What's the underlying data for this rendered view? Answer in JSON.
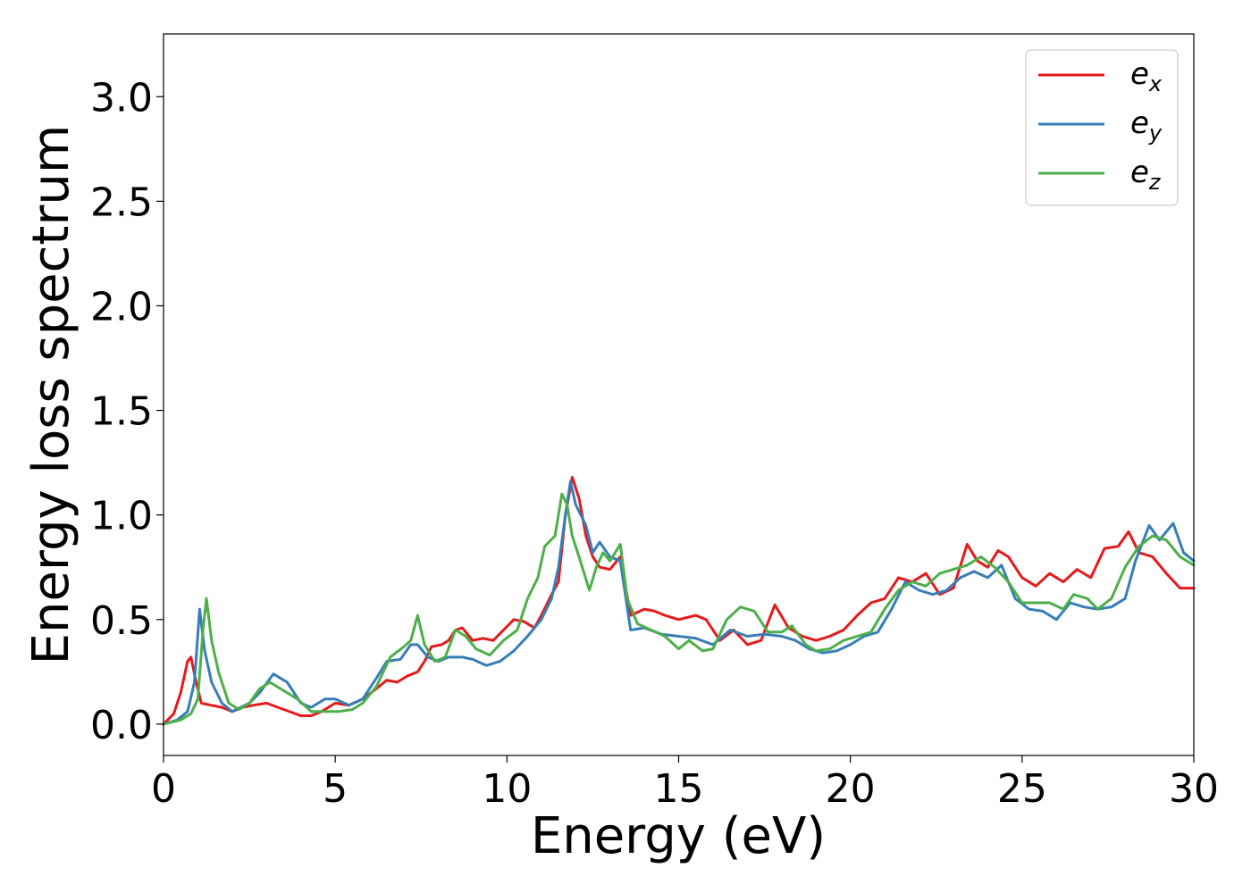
{
  "chart_data": {
    "type": "line",
    "xlabel": "Energy (eV)",
    "ylabel": "Energy loss spectrum",
    "xlim": [
      0,
      30
    ],
    "ylim": [
      -0.15,
      3.3
    ],
    "xticks": [
      0,
      5,
      10,
      15,
      20,
      25,
      30
    ],
    "xtick_labels": [
      "0",
      "5",
      "10",
      "15",
      "20",
      "25",
      "30"
    ],
    "yticks": [
      0.0,
      0.5,
      1.0,
      1.5,
      2.0,
      2.5,
      3.0
    ],
    "ytick_labels": [
      "0.0",
      "0.5",
      "1.0",
      "1.5",
      "2.0",
      "2.5",
      "3.0"
    ],
    "grid": false,
    "legend_position": "top-right",
    "series": [
      {
        "name": "e_x",
        "label_base": "e",
        "label_sub": "x",
        "color": "#e41a1c",
        "points": [
          [
            0,
            0.0
          ],
          [
            0.3,
            0.05
          ],
          [
            0.5,
            0.15
          ],
          [
            0.7,
            0.3
          ],
          [
            0.8,
            0.32
          ],
          [
            0.95,
            0.2
          ],
          [
            1.1,
            0.1
          ],
          [
            1.4,
            0.09
          ],
          [
            1.7,
            0.08
          ],
          [
            2.0,
            0.06
          ],
          [
            2.3,
            0.08
          ],
          [
            2.6,
            0.09
          ],
          [
            3.0,
            0.1
          ],
          [
            3.5,
            0.07
          ],
          [
            4.0,
            0.04
          ],
          [
            4.3,
            0.04
          ],
          [
            4.6,
            0.06
          ],
          [
            5.0,
            0.1
          ],
          [
            5.4,
            0.09
          ],
          [
            5.8,
            0.12
          ],
          [
            6.2,
            0.17
          ],
          [
            6.5,
            0.21
          ],
          [
            6.8,
            0.2
          ],
          [
            7.1,
            0.23
          ],
          [
            7.4,
            0.25
          ],
          [
            7.6,
            0.3
          ],
          [
            7.8,
            0.37
          ],
          [
            8.1,
            0.38
          ],
          [
            8.3,
            0.4
          ],
          [
            8.5,
            0.45
          ],
          [
            8.7,
            0.46
          ],
          [
            9.0,
            0.4
          ],
          [
            9.3,
            0.41
          ],
          [
            9.6,
            0.4
          ],
          [
            9.9,
            0.45
          ],
          [
            10.2,
            0.5
          ],
          [
            10.5,
            0.49
          ],
          [
            10.8,
            0.46
          ],
          [
            11.0,
            0.52
          ],
          [
            11.3,
            0.62
          ],
          [
            11.5,
            0.68
          ],
          [
            11.7,
            1.0
          ],
          [
            11.9,
            1.18
          ],
          [
            12.1,
            1.08
          ],
          [
            12.3,
            0.9
          ],
          [
            12.5,
            0.8
          ],
          [
            12.7,
            0.75
          ],
          [
            13.0,
            0.74
          ],
          [
            13.3,
            0.8
          ],
          [
            13.6,
            0.52
          ],
          [
            14.0,
            0.55
          ],
          [
            14.3,
            0.54
          ],
          [
            14.6,
            0.52
          ],
          [
            15.0,
            0.5
          ],
          [
            15.5,
            0.52
          ],
          [
            15.8,
            0.5
          ],
          [
            16.2,
            0.4
          ],
          [
            16.6,
            0.45
          ],
          [
            17.0,
            0.38
          ],
          [
            17.4,
            0.4
          ],
          [
            17.8,
            0.57
          ],
          [
            18.2,
            0.46
          ],
          [
            18.6,
            0.42
          ],
          [
            19.0,
            0.4
          ],
          [
            19.4,
            0.42
          ],
          [
            19.8,
            0.45
          ],
          [
            20.2,
            0.52
          ],
          [
            20.6,
            0.58
          ],
          [
            21.0,
            0.6
          ],
          [
            21.4,
            0.7
          ],
          [
            21.8,
            0.68
          ],
          [
            22.2,
            0.72
          ],
          [
            22.6,
            0.62
          ],
          [
            23.0,
            0.65
          ],
          [
            23.4,
            0.86
          ],
          [
            23.7,
            0.78
          ],
          [
            24.0,
            0.75
          ],
          [
            24.3,
            0.83
          ],
          [
            24.6,
            0.8
          ],
          [
            25.0,
            0.7
          ],
          [
            25.4,
            0.66
          ],
          [
            25.8,
            0.72
          ],
          [
            26.2,
            0.68
          ],
          [
            26.6,
            0.74
          ],
          [
            27.0,
            0.7
          ],
          [
            27.4,
            0.84
          ],
          [
            27.8,
            0.85
          ],
          [
            28.1,
            0.92
          ],
          [
            28.4,
            0.82
          ],
          [
            28.8,
            0.8
          ],
          [
            29.2,
            0.72
          ],
          [
            29.6,
            0.65
          ],
          [
            30.0,
            0.65
          ]
        ]
      },
      {
        "name": "e_y",
        "label_base": "e",
        "label_sub": "y",
        "color": "#377eb8",
        "points": [
          [
            0,
            0.0
          ],
          [
            0.4,
            0.02
          ],
          [
            0.7,
            0.06
          ],
          [
            0.9,
            0.2
          ],
          [
            1.05,
            0.55
          ],
          [
            1.2,
            0.35
          ],
          [
            1.4,
            0.2
          ],
          [
            1.7,
            0.1
          ],
          [
            2.0,
            0.06
          ],
          [
            2.5,
            0.1
          ],
          [
            2.8,
            0.15
          ],
          [
            3.2,
            0.24
          ],
          [
            3.6,
            0.2
          ],
          [
            4.0,
            0.1
          ],
          [
            4.3,
            0.08
          ],
          [
            4.7,
            0.12
          ],
          [
            5.0,
            0.12
          ],
          [
            5.4,
            0.09
          ],
          [
            5.8,
            0.12
          ],
          [
            6.2,
            0.22
          ],
          [
            6.5,
            0.3
          ],
          [
            6.9,
            0.31
          ],
          [
            7.2,
            0.38
          ],
          [
            7.4,
            0.38
          ],
          [
            7.7,
            0.32
          ],
          [
            8.0,
            0.3
          ],
          [
            8.3,
            0.32
          ],
          [
            8.7,
            0.32
          ],
          [
            9.0,
            0.31
          ],
          [
            9.4,
            0.28
          ],
          [
            9.8,
            0.3
          ],
          [
            10.2,
            0.35
          ],
          [
            10.6,
            0.42
          ],
          [
            11.0,
            0.5
          ],
          [
            11.3,
            0.6
          ],
          [
            11.5,
            0.75
          ],
          [
            11.7,
            1.0
          ],
          [
            11.85,
            1.16
          ],
          [
            12.0,
            1.05
          ],
          [
            12.3,
            0.95
          ],
          [
            12.5,
            0.82
          ],
          [
            12.7,
            0.87
          ],
          [
            13.0,
            0.8
          ],
          [
            13.3,
            0.78
          ],
          [
            13.6,
            0.45
          ],
          [
            14.0,
            0.46
          ],
          [
            14.5,
            0.43
          ],
          [
            15.0,
            0.42
          ],
          [
            15.5,
            0.41
          ],
          [
            16.0,
            0.38
          ],
          [
            16.5,
            0.45
          ],
          [
            17.0,
            0.42
          ],
          [
            17.5,
            0.43
          ],
          [
            18.0,
            0.42
          ],
          [
            18.4,
            0.4
          ],
          [
            18.8,
            0.36
          ],
          [
            19.2,
            0.34
          ],
          [
            19.6,
            0.35
          ],
          [
            20.0,
            0.38
          ],
          [
            20.4,
            0.42
          ],
          [
            20.8,
            0.44
          ],
          [
            21.2,
            0.55
          ],
          [
            21.6,
            0.68
          ],
          [
            22.0,
            0.64
          ],
          [
            22.4,
            0.62
          ],
          [
            22.8,
            0.64
          ],
          [
            23.2,
            0.7
          ],
          [
            23.6,
            0.73
          ],
          [
            24.0,
            0.7
          ],
          [
            24.4,
            0.76
          ],
          [
            24.8,
            0.6
          ],
          [
            25.2,
            0.55
          ],
          [
            25.6,
            0.54
          ],
          [
            26.0,
            0.5
          ],
          [
            26.4,
            0.58
          ],
          [
            26.8,
            0.56
          ],
          [
            27.2,
            0.55
          ],
          [
            27.6,
            0.56
          ],
          [
            28.0,
            0.6
          ],
          [
            28.3,
            0.78
          ],
          [
            28.7,
            0.95
          ],
          [
            29.0,
            0.88
          ],
          [
            29.4,
            0.96
          ],
          [
            29.7,
            0.82
          ],
          [
            30.0,
            0.78
          ]
        ]
      },
      {
        "name": "e_z",
        "label_base": "e",
        "label_sub": "z",
        "color": "#4daf4a",
        "points": [
          [
            0,
            0.0
          ],
          [
            0.5,
            0.02
          ],
          [
            0.8,
            0.05
          ],
          [
            1.0,
            0.12
          ],
          [
            1.15,
            0.45
          ],
          [
            1.25,
            0.6
          ],
          [
            1.4,
            0.4
          ],
          [
            1.6,
            0.25
          ],
          [
            1.9,
            0.1
          ],
          [
            2.2,
            0.07
          ],
          [
            2.5,
            0.1
          ],
          [
            2.8,
            0.17
          ],
          [
            3.1,
            0.2
          ],
          [
            3.5,
            0.16
          ],
          [
            3.9,
            0.12
          ],
          [
            4.3,
            0.06
          ],
          [
            4.7,
            0.06
          ],
          [
            5.1,
            0.06
          ],
          [
            5.5,
            0.07
          ],
          [
            5.8,
            0.1
          ],
          [
            6.2,
            0.18
          ],
          [
            6.6,
            0.32
          ],
          [
            7.0,
            0.37
          ],
          [
            7.2,
            0.4
          ],
          [
            7.4,
            0.52
          ],
          [
            7.6,
            0.38
          ],
          [
            7.9,
            0.3
          ],
          [
            8.2,
            0.32
          ],
          [
            8.5,
            0.45
          ],
          [
            8.8,
            0.42
          ],
          [
            9.1,
            0.36
          ],
          [
            9.5,
            0.33
          ],
          [
            9.9,
            0.4
          ],
          [
            10.3,
            0.45
          ],
          [
            10.6,
            0.6
          ],
          [
            10.9,
            0.7
          ],
          [
            11.1,
            0.85
          ],
          [
            11.4,
            0.9
          ],
          [
            11.6,
            1.1
          ],
          [
            11.75,
            1.05
          ],
          [
            11.9,
            0.9
          ],
          [
            12.1,
            0.8
          ],
          [
            12.4,
            0.64
          ],
          [
            12.6,
            0.75
          ],
          [
            12.8,
            0.82
          ],
          [
            13.0,
            0.78
          ],
          [
            13.3,
            0.86
          ],
          [
            13.5,
            0.6
          ],
          [
            13.8,
            0.48
          ],
          [
            14.2,
            0.45
          ],
          [
            14.6,
            0.42
          ],
          [
            15.0,
            0.36
          ],
          [
            15.3,
            0.4
          ],
          [
            15.7,
            0.35
          ],
          [
            16.0,
            0.36
          ],
          [
            16.4,
            0.5
          ],
          [
            16.8,
            0.56
          ],
          [
            17.2,
            0.54
          ],
          [
            17.6,
            0.44
          ],
          [
            18.0,
            0.44
          ],
          [
            18.3,
            0.47
          ],
          [
            18.7,
            0.38
          ],
          [
            19.0,
            0.35
          ],
          [
            19.4,
            0.36
          ],
          [
            19.8,
            0.4
          ],
          [
            20.2,
            0.42
          ],
          [
            20.6,
            0.44
          ],
          [
            21.0,
            0.55
          ],
          [
            21.4,
            0.64
          ],
          [
            21.8,
            0.68
          ],
          [
            22.2,
            0.66
          ],
          [
            22.6,
            0.72
          ],
          [
            23.0,
            0.74
          ],
          [
            23.4,
            0.76
          ],
          [
            23.8,
            0.8
          ],
          [
            24.2,
            0.75
          ],
          [
            24.6,
            0.68
          ],
          [
            25.0,
            0.58
          ],
          [
            25.4,
            0.58
          ],
          [
            25.8,
            0.58
          ],
          [
            26.2,
            0.55
          ],
          [
            26.5,
            0.62
          ],
          [
            26.9,
            0.6
          ],
          [
            27.2,
            0.55
          ],
          [
            27.6,
            0.6
          ],
          [
            28.0,
            0.75
          ],
          [
            28.4,
            0.85
          ],
          [
            28.8,
            0.9
          ],
          [
            29.2,
            0.88
          ],
          [
            29.6,
            0.8
          ],
          [
            30.0,
            0.76
          ]
        ]
      }
    ]
  }
}
